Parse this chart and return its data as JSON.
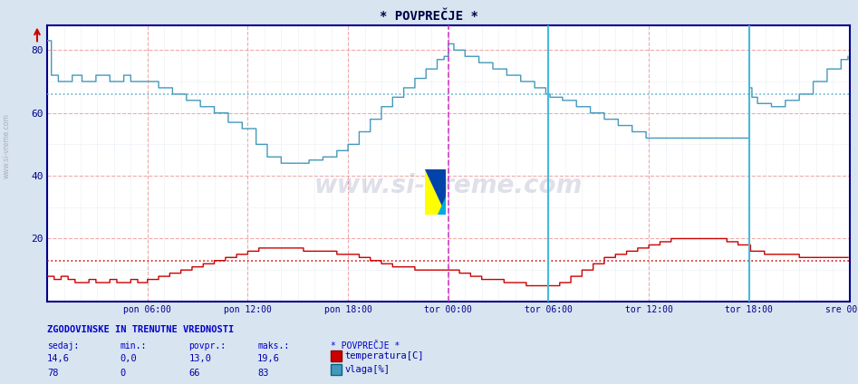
{
  "title": "* POVPREČJE *",
  "ylim": [
    0,
    88
  ],
  "xlim": [
    0,
    576
  ],
  "background_color": "#ffffff",
  "fig_bg_color": "#d8e4f0",
  "temp_color": "#cc0000",
  "humid_color": "#4499bb",
  "temp_avg": 13.0,
  "humid_avg": 66,
  "xtick_labels": [
    "pon 06:00",
    "pon 12:00",
    "pon 18:00",
    "tor 00:00",
    "tor 06:00",
    "tor 12:00",
    "tor 18:00",
    "sre 00:00"
  ],
  "xtick_positions": [
    72,
    144,
    216,
    288,
    360,
    432,
    504,
    576
  ],
  "title_color": "#000044",
  "axis_color": "#000088",
  "legend_header": "ZGODOVINSKE IN TRENUTNE VREDNOSTI",
  "legend_cols": [
    "sedaj:",
    "min.:",
    "povpr.:",
    "maks.:"
  ],
  "legend_header5": "* POVPREČJE *",
  "temp_values": [
    "14,6",
    "0,0",
    "13,0",
    "19,6"
  ],
  "humid_values": [
    "78",
    "0",
    "66",
    "83"
  ],
  "temp_label": "temperatura[C]",
  "humid_label": "vlaga[%]",
  "watermark": "www.si-vreme.com",
  "n_points": 576,
  "magenta_line_x": 288,
  "cyan_line_x1": 360,
  "cyan_line_x2": 504,
  "minor_grid_color": "#d0dce8",
  "major_grid_color": "#f0a0a0",
  "avg_temp_color": "#cc0000",
  "avg_humid_color": "#55aacc"
}
